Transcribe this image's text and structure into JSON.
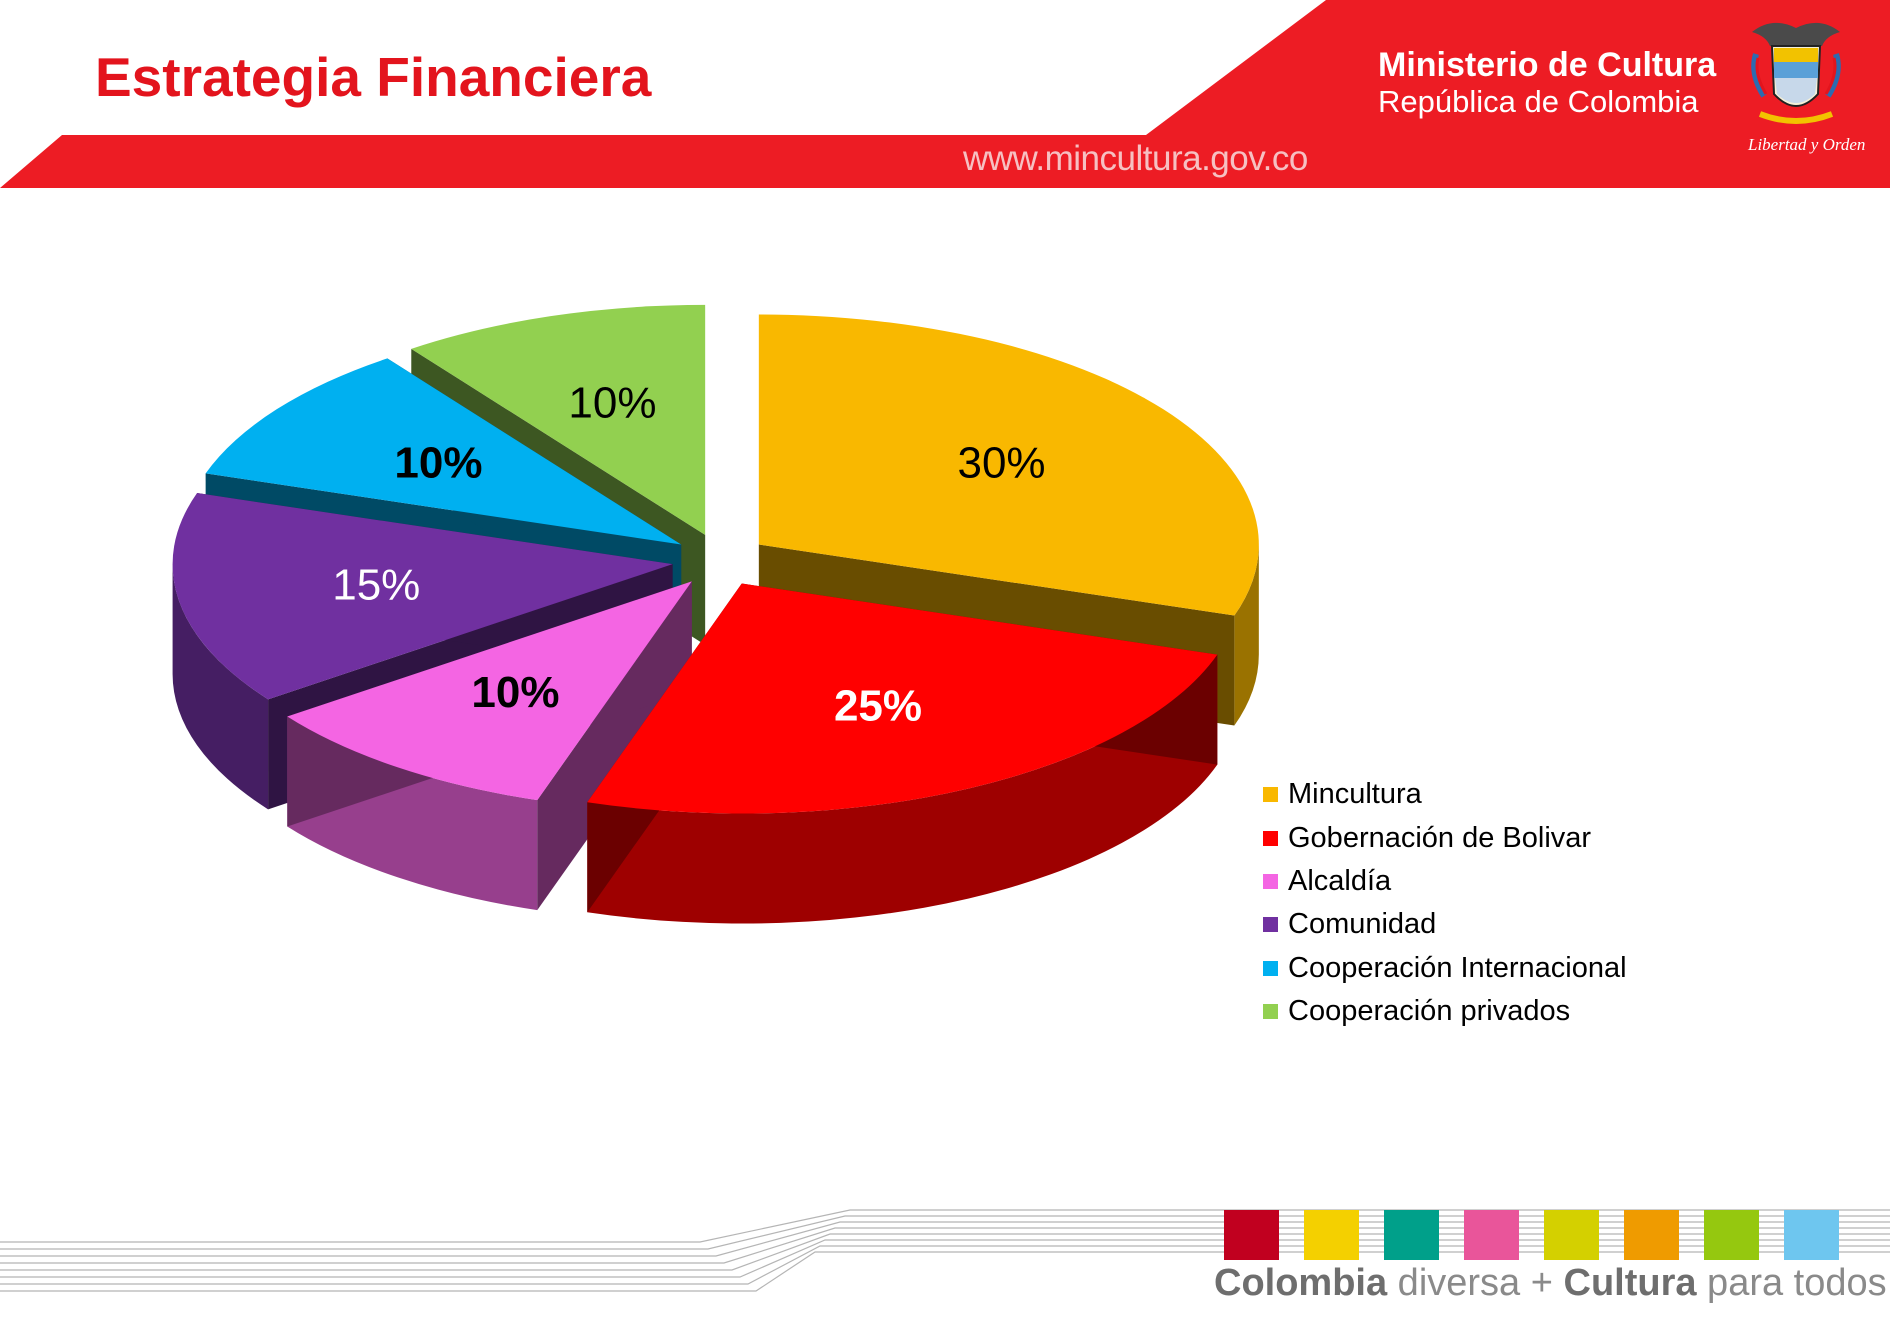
{
  "header": {
    "title": "Estrategia Financiera",
    "ministry_name": "Ministerio de Cultura",
    "ministry_country": "República de Colombia",
    "website": "www.mincultura.gov.co",
    "motto": "Libertad y Orden",
    "brand_red": "#e3141d"
  },
  "chart_data": {
    "type": "pie",
    "style": "3d-exploded",
    "title": "",
    "legend_position": "right",
    "slices": [
      {
        "name": "Mincultura",
        "value": 30,
        "label": "30%",
        "color": "#f9b800",
        "label_bold": false,
        "label_color": "#000000"
      },
      {
        "name": "Gobernación de Bolivar",
        "value": 25,
        "label": "25%",
        "color": "#ff0000",
        "label_bold": true,
        "label_color": "#ffffff"
      },
      {
        "name": "Alcaldía",
        "value": 10,
        "label": "10%",
        "color": "#f465e3",
        "label_bold": true,
        "label_color": "#000000"
      },
      {
        "name": "Comunidad",
        "value": 15,
        "label": "15%",
        "color": "#7030a0",
        "label_bold": false,
        "label_color": "#ffffff"
      },
      {
        "name": "Cooperación Internacional",
        "value": 10,
        "label": "10%",
        "color": "#00b0f0",
        "label_bold": true,
        "label_color": "#000000"
      },
      {
        "name": "Cooperación privados",
        "value": 10,
        "label": "10%",
        "color": "#92d050",
        "label_bold": false,
        "label_color": "#000000"
      }
    ]
  },
  "footer": {
    "slogan_part1": "Colombia",
    "slogan_part2": " diversa + ",
    "slogan_part3": "Cultura",
    "slogan_part4": " para todos",
    "color_squares": [
      "#c1001f",
      "#f4d000",
      "#00a08a",
      "#e9559a",
      "#d4d000",
      "#ef9b00",
      "#95c80f",
      "#6ec6ef"
    ]
  }
}
